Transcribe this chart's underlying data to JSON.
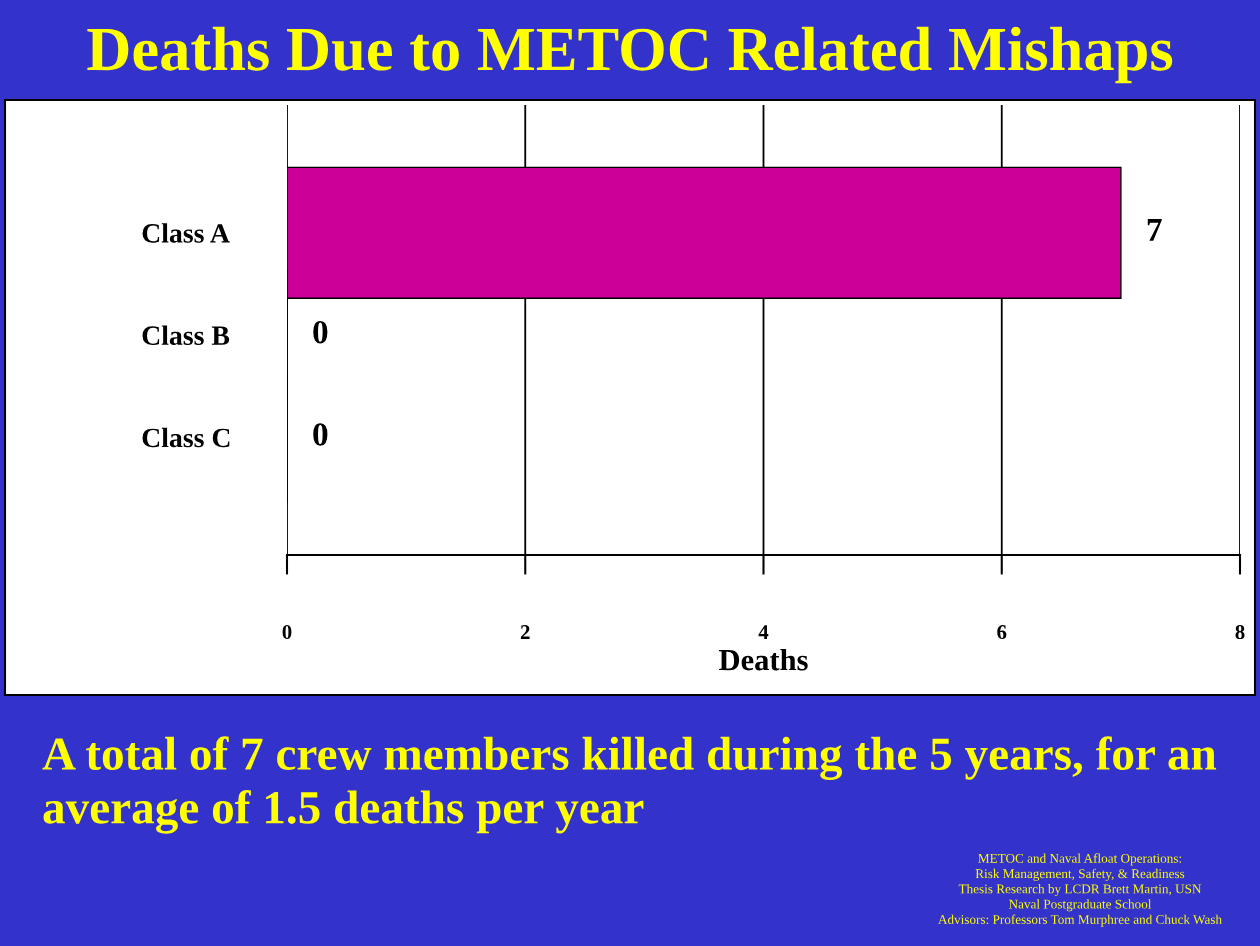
{
  "chart_data": {
    "type": "bar",
    "orientation": "horizontal",
    "title": "Deaths Due to METOC Related Mishaps",
    "xlabel": "Deaths",
    "categories": [
      "Class A",
      "Class B",
      "Class C"
    ],
    "values": [
      7,
      0,
      0
    ],
    "color": "#cc0099",
    "data_labels": true,
    "xlim": [
      0,
      8
    ],
    "xticks": [
      0,
      2,
      4,
      6,
      8
    ],
    "grid": "x",
    "legend": false,
    "annotations": [
      "A total of 7 crew members killed during the 5 years, for an average of 1.5 deaths per year",
      "METOC and Naval Afloat Operations:\nRisk Management, Safety, & Readiness\nThesis Research by LCDR Brett Martin, USN\nNaval Postgraduate School\nAdvisors: Professors Tom Murphree and Chuck Wash"
    ]
  }
}
